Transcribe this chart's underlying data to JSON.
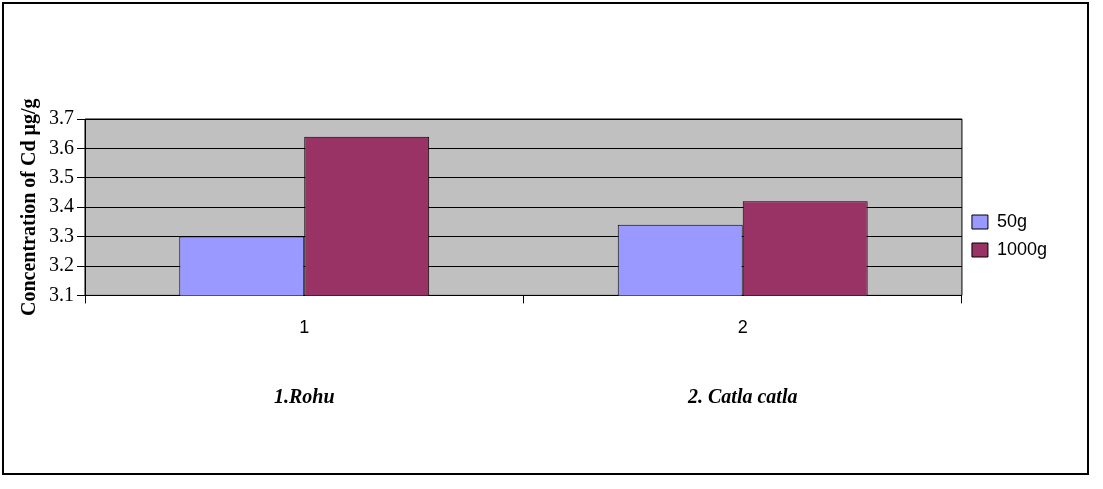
{
  "chart_data": {
    "type": "bar",
    "ylabel": "Concentration of Cd µg/g",
    "categories": [
      "1",
      "2"
    ],
    "series": [
      {
        "name": "50g",
        "color": "#9999ff",
        "values": [
          3.3,
          3.34
        ]
      },
      {
        "name": "1000g",
        "color": "#993366",
        "values": [
          3.64,
          3.42
        ]
      }
    ],
    "ylim": [
      3.1,
      3.7
    ],
    "yticks": [
      3.1,
      3.2,
      3.3,
      3.4,
      3.5,
      3.6,
      3.7
    ],
    "grid": "y",
    "legend": "right",
    "annotations": [
      "1.Rohu",
      "2. Catla catla"
    ]
  }
}
